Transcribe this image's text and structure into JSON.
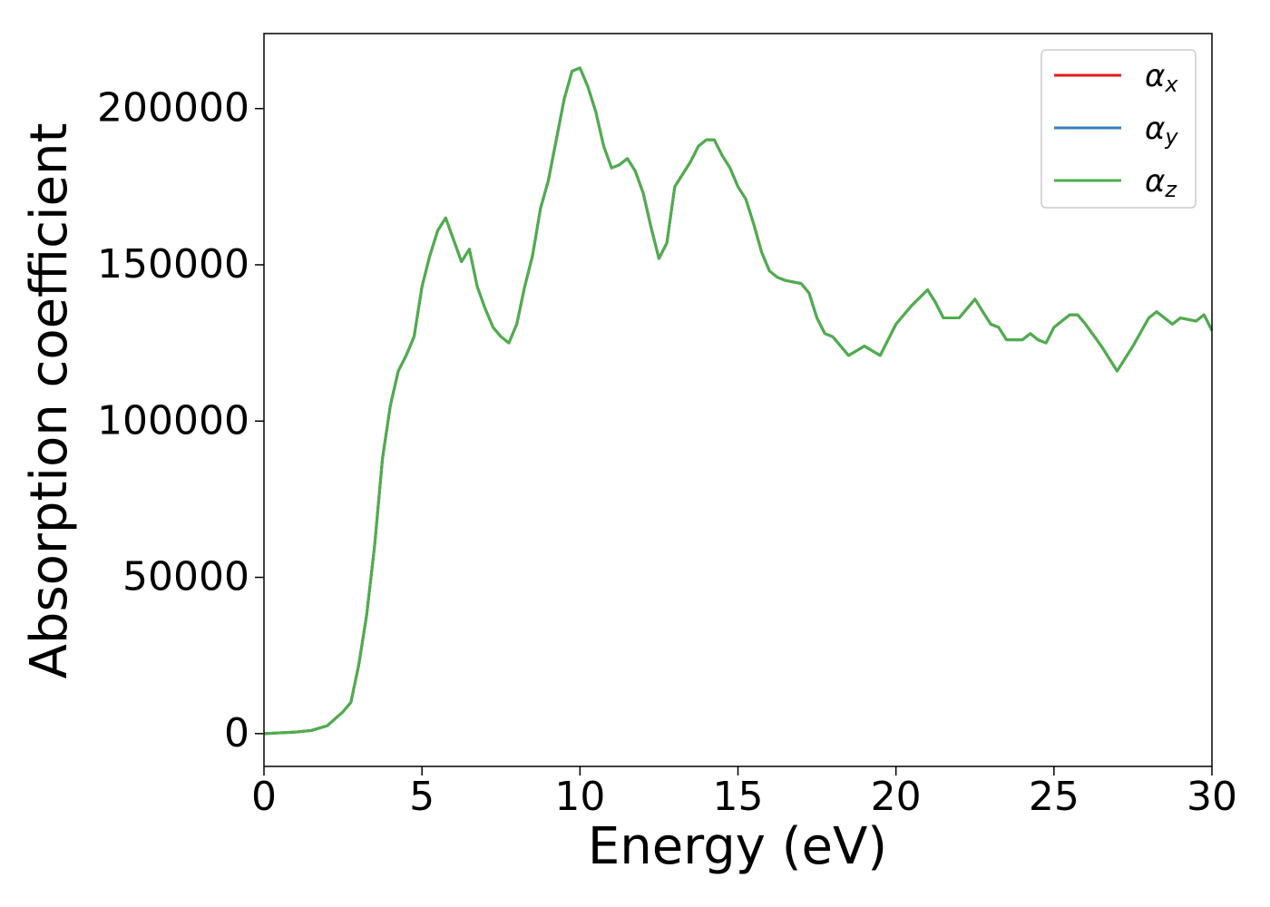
{
  "chart_data": {
    "type": "line",
    "xlabel": "Energy (eV)",
    "ylabel": "Absorption coefficient",
    "x": [
      0,
      1,
      1.5,
      2,
      2.5,
      2.75,
      3,
      3.25,
      3.5,
      3.75,
      4,
      4.25,
      4.5,
      4.75,
      5,
      5.25,
      5.5,
      5.75,
      6,
      6.25,
      6.5,
      6.75,
      7,
      7.25,
      7.5,
      7.75,
      8,
      8.25,
      8.5,
      8.75,
      9,
      9.25,
      9.5,
      9.75,
      10,
      10.25,
      10.5,
      10.75,
      11,
      11.25,
      11.5,
      11.75,
      12,
      12.25,
      12.5,
      12.75,
      13,
      13.25,
      13.5,
      13.75,
      14,
      14.25,
      14.5,
      14.75,
      15,
      15.25,
      15.5,
      15.75,
      16,
      16.25,
      16.5,
      17,
      17.25,
      17.5,
      17.75,
      18,
      18.5,
      19,
      19.5,
      20,
      20.5,
      21,
      21.25,
      21.5,
      22,
      22.5,
      22.75,
      23,
      23.25,
      23.5,
      24,
      24.25,
      24.5,
      24.75,
      25,
      25.5,
      25.75,
      26,
      26.5,
      26.75,
      27,
      27.5,
      28,
      28.25,
      28.5,
      28.75,
      29,
      29.5,
      29.75,
      30
    ],
    "series": [
      {
        "name": "αx",
        "color": "#e41a1c",
        "values": [
          0,
          500,
          1000,
          2500,
          7000,
          10000,
          22000,
          38000,
          60000,
          88000,
          105000,
          116000,
          121000,
          127000,
          143000,
          153000,
          161000,
          165000,
          158000,
          151000,
          155000,
          143000,
          136000,
          130000,
          127000,
          125000,
          131000,
          143000,
          153000,
          168000,
          177000,
          190000,
          203000,
          212000,
          213000,
          207000,
          199000,
          188000,
          181000,
          182000,
          184000,
          180000,
          173000,
          162000,
          152000,
          157000,
          175000,
          179000,
          183000,
          188000,
          190000,
          190000,
          185000,
          181000,
          175000,
          171000,
          163000,
          154000,
          148000,
          146000,
          145000,
          144000,
          141000,
          133000,
          128000,
          127000,
          121000,
          124000,
          121000,
          131000,
          137000,
          142000,
          138000,
          133000,
          133000,
          139000,
          135000,
          131000,
          130000,
          126000,
          126000,
          128000,
          126000,
          125000,
          130000,
          134000,
          134000,
          131000,
          124000,
          120000,
          116000,
          124000,
          133000,
          135000,
          133000,
          131000,
          133000,
          132000,
          134000,
          129000
        ]
      },
      {
        "name": "αy",
        "color": "#377eb8",
        "values": [
          0,
          500,
          1000,
          2500,
          7000,
          10000,
          22000,
          38000,
          60000,
          88000,
          105000,
          116000,
          121000,
          127000,
          143000,
          153000,
          161000,
          165000,
          158000,
          151000,
          155000,
          143000,
          136000,
          130000,
          127000,
          125000,
          131000,
          143000,
          153000,
          168000,
          177000,
          190000,
          203000,
          212000,
          213000,
          207000,
          199000,
          188000,
          181000,
          182000,
          184000,
          180000,
          173000,
          162000,
          152000,
          157000,
          175000,
          179000,
          183000,
          188000,
          190000,
          190000,
          185000,
          181000,
          175000,
          171000,
          163000,
          154000,
          148000,
          146000,
          145000,
          144000,
          141000,
          133000,
          128000,
          127000,
          121000,
          124000,
          121000,
          131000,
          137000,
          142000,
          138000,
          133000,
          133000,
          139000,
          135000,
          131000,
          130000,
          126000,
          126000,
          128000,
          126000,
          125000,
          130000,
          134000,
          134000,
          131000,
          124000,
          120000,
          116000,
          124000,
          133000,
          135000,
          133000,
          131000,
          133000,
          132000,
          134000,
          129000
        ]
      },
      {
        "name": "αz",
        "color": "#4daf4a",
        "values": [
          0,
          500,
          1000,
          2500,
          7000,
          10000,
          22000,
          38000,
          60000,
          88000,
          105000,
          116000,
          121000,
          127000,
          143000,
          153000,
          161000,
          165000,
          158000,
          151000,
          155000,
          143000,
          136000,
          130000,
          127000,
          125000,
          131000,
          143000,
          153000,
          168000,
          177000,
          190000,
          203000,
          212000,
          213000,
          207000,
          199000,
          188000,
          181000,
          182000,
          184000,
          180000,
          173000,
          162000,
          152000,
          157000,
          175000,
          179000,
          183000,
          188000,
          190000,
          190000,
          185000,
          181000,
          175000,
          171000,
          163000,
          154000,
          148000,
          146000,
          145000,
          144000,
          141000,
          133000,
          128000,
          127000,
          121000,
          124000,
          121000,
          131000,
          137000,
          142000,
          138000,
          133000,
          133000,
          139000,
          135000,
          131000,
          130000,
          126000,
          126000,
          128000,
          126000,
          125000,
          130000,
          134000,
          134000,
          131000,
          124000,
          120000,
          116000,
          124000,
          133000,
          135000,
          133000,
          131000,
          133000,
          132000,
          134000,
          129000
        ]
      }
    ],
    "xlim": [
      0,
      30
    ],
    "xticks": [
      0,
      5,
      10,
      15,
      20,
      25,
      30
    ],
    "ylim": [
      -10500,
      224000
    ],
    "yticks": [
      0,
      50000,
      100000,
      150000,
      200000
    ],
    "grid": false,
    "legend": "upper right"
  }
}
